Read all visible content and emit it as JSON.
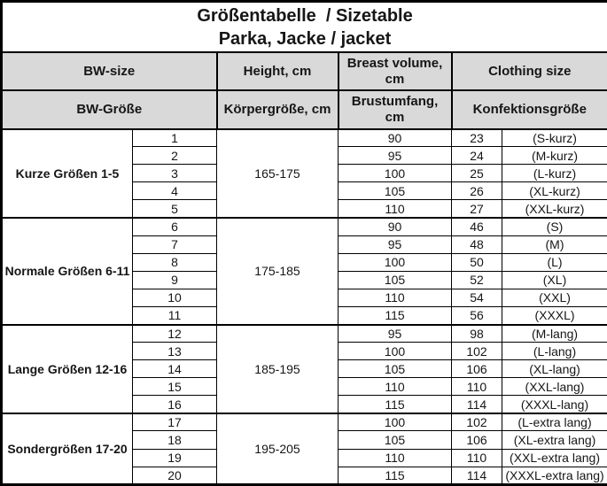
{
  "title": {
    "line1": "Größentabelle  / Sizetable",
    "line2": "Parka, Jacke / jacket"
  },
  "header": {
    "en": {
      "bw": "BW-size",
      "height": "Height, cm",
      "breast": "Breast volume, cm",
      "clothing": "Clothing size"
    },
    "de": {
      "bw": "BW-Größe",
      "height": "Körpergröße, cm",
      "breast": "Brustumfang, cm",
      "clothing": "Konfektionsgröße"
    }
  },
  "colors": {
    "header_bg": "#d9d9d9",
    "border": "#000000",
    "cell_bg": "#ffffff",
    "text": "#161616"
  },
  "groups": [
    {
      "label": "Kurze Größen 1-5",
      "height": "165-175",
      "rows": [
        {
          "size": "1",
          "breast": "90",
          "clothing": "23",
          "label": "(S-kurz)"
        },
        {
          "size": "2",
          "breast": "95",
          "clothing": "24",
          "label": "(M-kurz)"
        },
        {
          "size": "3",
          "breast": "100",
          "clothing": "25",
          "label": "(L-kurz)"
        },
        {
          "size": "4",
          "breast": "105",
          "clothing": "26",
          "label": "(XL-kurz)"
        },
        {
          "size": "5",
          "breast": "110",
          "clothing": "27",
          "label": "(XXL-kurz)"
        }
      ]
    },
    {
      "label": "Normale Größen 6-11",
      "height": "175-185",
      "rows": [
        {
          "size": "6",
          "breast": "90",
          "clothing": "46",
          "label": "(S)"
        },
        {
          "size": "7",
          "breast": "95",
          "clothing": "48",
          "label": "(M)"
        },
        {
          "size": "8",
          "breast": "100",
          "clothing": "50",
          "label": "(L)"
        },
        {
          "size": "9",
          "breast": "105",
          "clothing": "52",
          "label": "(XL)"
        },
        {
          "size": "10",
          "breast": "110",
          "clothing": "54",
          "label": "(XXL)"
        },
        {
          "size": "11",
          "breast": "115",
          "clothing": "56",
          "label": "(XXXL)"
        }
      ]
    },
    {
      "label": "Lange Größen 12-16",
      "height": "185-195",
      "rows": [
        {
          "size": "12",
          "breast": "95",
          "clothing": "98",
          "label": "(M-lang)"
        },
        {
          "size": "13",
          "breast": "100",
          "clothing": "102",
          "label": "(L-lang)"
        },
        {
          "size": "14",
          "breast": "105",
          "clothing": "106",
          "label": "(XL-lang)"
        },
        {
          "size": "15",
          "breast": "110",
          "clothing": "110",
          "label": "(XXL-lang)"
        },
        {
          "size": "16",
          "breast": "115",
          "clothing": "114",
          "label": "(XXXL-lang)"
        }
      ]
    },
    {
      "label": "Sondergrößen 17-20",
      "height": "195-205",
      "rows": [
        {
          "size": "17",
          "breast": "100",
          "clothing": "102",
          "label": "(L-extra lang)"
        },
        {
          "size": "18",
          "breast": "105",
          "clothing": "106",
          "label": "(XL-extra lang)"
        },
        {
          "size": "19",
          "breast": "110",
          "clothing": "110",
          "label": "(XXL-extra lang)"
        },
        {
          "size": "20",
          "breast": "115",
          "clothing": "114",
          "label": "(XXXL-extra lang)"
        }
      ]
    }
  ]
}
